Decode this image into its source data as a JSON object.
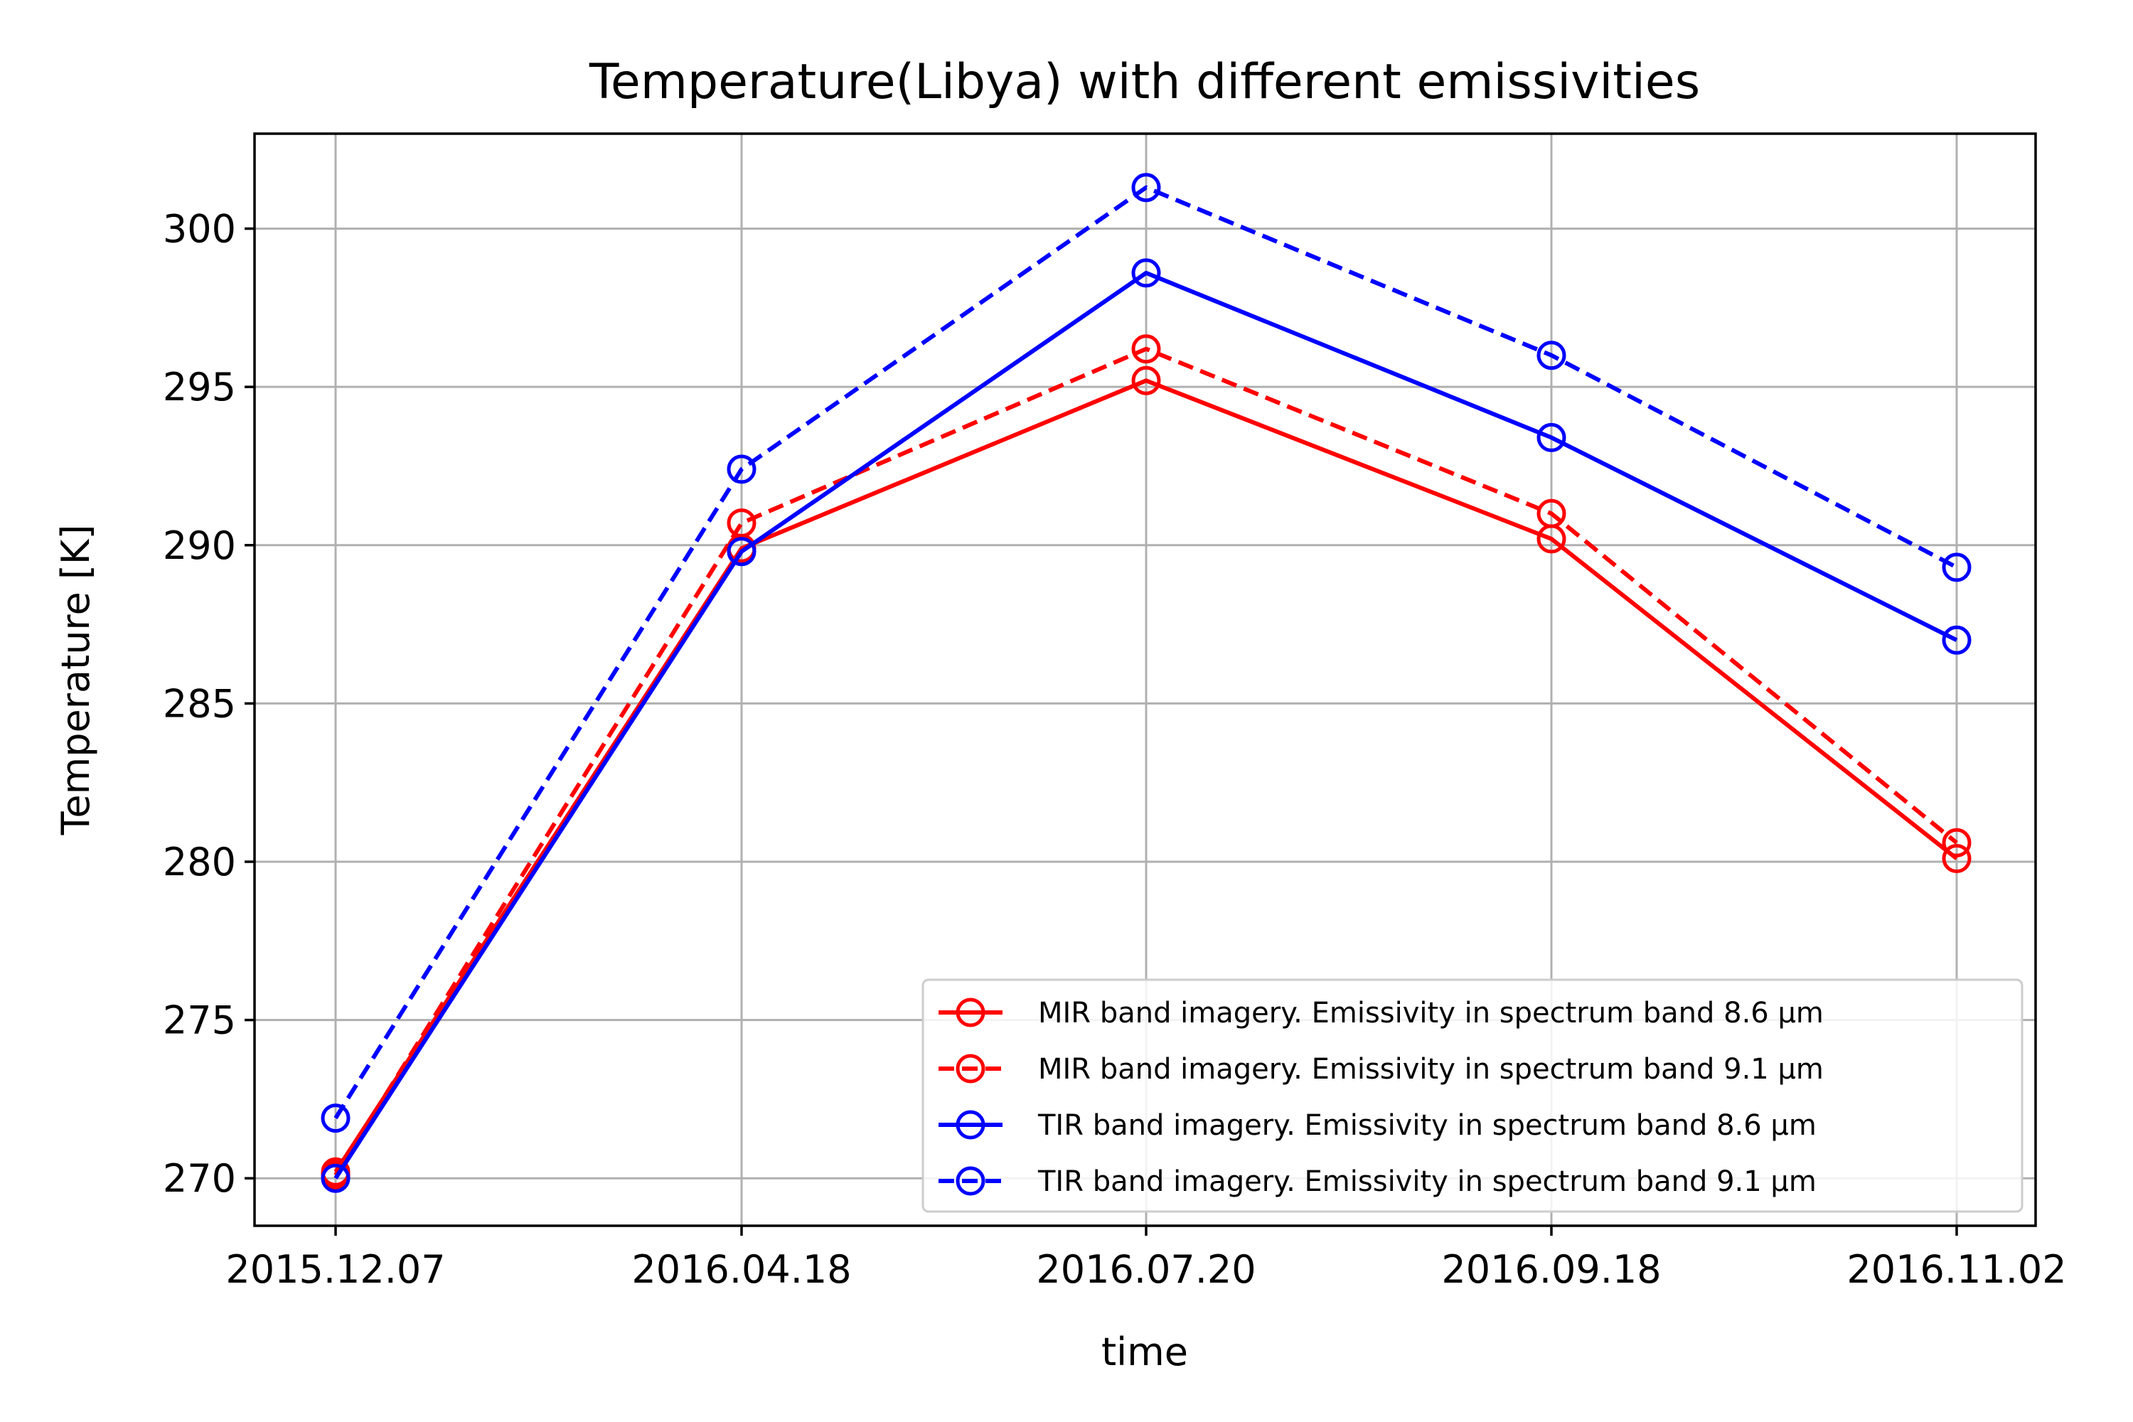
{
  "chart_data": {
    "type": "line",
    "title": "Temperature(Libya) with different emissivities",
    "xlabel": "time",
    "ylabel": "Temperature [K]",
    "categories": [
      "2015.12.07",
      "2016.04.18",
      "2016.07.20",
      "2016.09.18",
      "2016.11.02"
    ],
    "ylim": [
      268.5,
      303
    ],
    "yticks": [
      270,
      275,
      280,
      285,
      290,
      295,
      300
    ],
    "grid": true,
    "legend_position": "lower-right",
    "series": [
      {
        "name": "MIR band imagery. Emissivity in spectrum band 8.6 μm",
        "color": "#ff0000",
        "dash": "solid",
        "marker": "open-circle",
        "values": [
          270.2,
          289.9,
          295.2,
          290.2,
          280.1
        ]
      },
      {
        "name": "MIR band imagery. Emissivity in spectrum band 9.1 μm",
        "color": "#ff0000",
        "dash": "dashed",
        "marker": "open-circle",
        "values": [
          270.1,
          290.7,
          296.2,
          291.0,
          280.6
        ]
      },
      {
        "name": "TIR band imagery. Emissivity in spectrum band 8.6 μm",
        "color": "#0000ff",
        "dash": "solid",
        "marker": "open-circle",
        "values": [
          270.0,
          289.8,
          298.6,
          293.4,
          287.0
        ]
      },
      {
        "name": "TIR band imagery. Emissivity in spectrum band 9.1 μm",
        "color": "#0000ff",
        "dash": "dashed",
        "marker": "open-circle",
        "values": [
          271.9,
          292.4,
          301.3,
          296.0,
          289.3
        ]
      }
    ]
  }
}
